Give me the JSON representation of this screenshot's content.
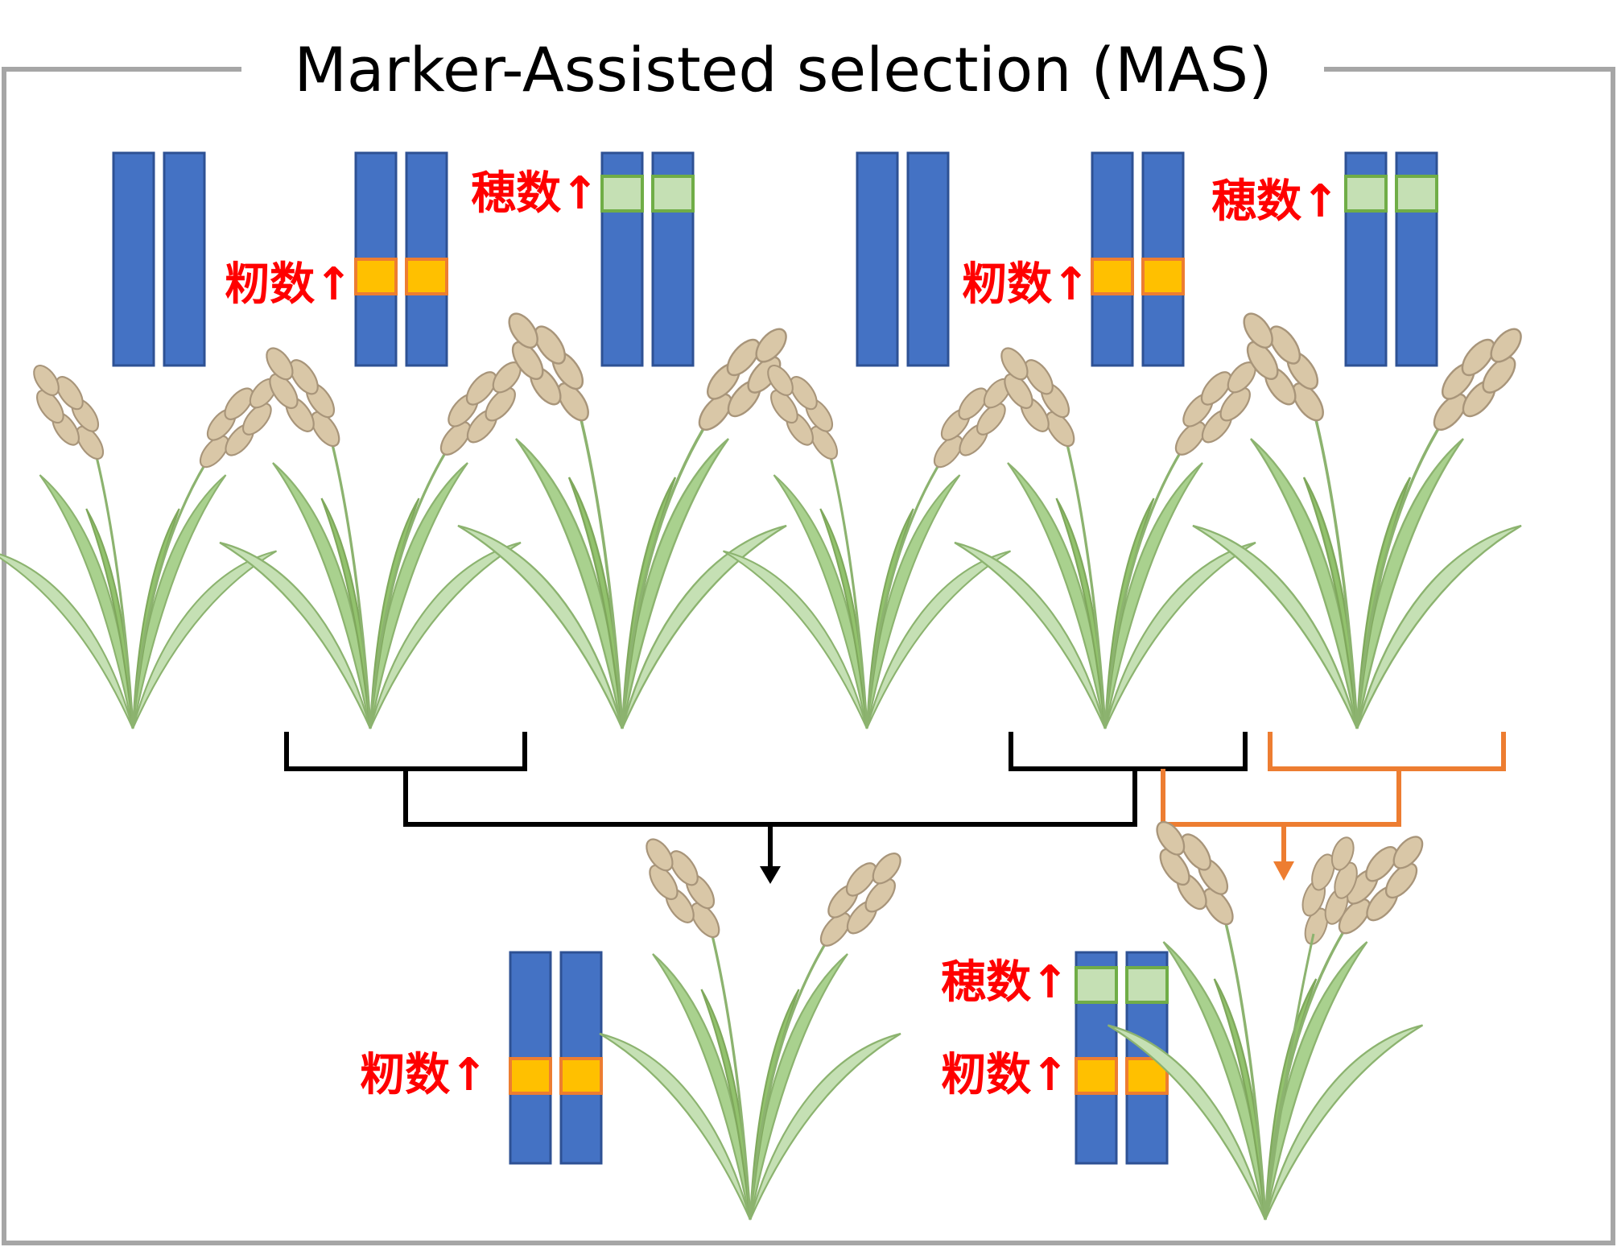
{
  "title": "Marker-Assisted selection (MAS)",
  "labels": {
    "grain_number_up": "籾数↑",
    "panicle_number_up": "穂数↑"
  },
  "colors": {
    "chromosome": "#4472C4",
    "chromosome_border": "#2E5194",
    "grain_marker": "#FFC000",
    "grain_marker_border": "#ED7D31",
    "panicle_marker": "#C5E0B4",
    "panicle_marker_border": "#70AD47",
    "label_text": "#FF0000",
    "cross_black": "#000000",
    "cross_orange": "#ED7D31",
    "frame": "#A6A6A6"
  },
  "icons": [
    "rice-plant-icon"
  ],
  "generations": {
    "parents": [
      {
        "id": "p1",
        "markers": []
      },
      {
        "id": "p2",
        "markers": [
          "grain"
        ]
      },
      {
        "id": "p3",
        "markers": [
          "panicle"
        ]
      },
      {
        "id": "p4",
        "markers": []
      },
      {
        "id": "p5",
        "markers": [
          "grain"
        ]
      },
      {
        "id": "p6",
        "markers": [
          "panicle"
        ]
      }
    ],
    "offspring": [
      {
        "id": "o1",
        "markers": [
          "grain"
        ]
      },
      {
        "id": "o2",
        "markers": [
          "panicle",
          "grain"
        ]
      }
    ]
  }
}
